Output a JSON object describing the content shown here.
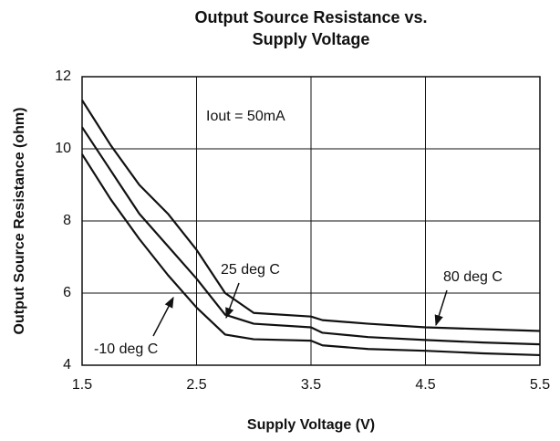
{
  "chart_data": {
    "type": "line",
    "title": [
      "Output Source Resistance vs.",
      "Supply Voltage"
    ],
    "x_label": "Supply Voltage (V)",
    "y_label": "Output Source Resistance (ohm)",
    "annotations": [
      "Iout = 50mA"
    ],
    "x": [
      1.5,
      1.75,
      2.0,
      2.25,
      2.5,
      2.75,
      3.0,
      3.5,
      3.6,
      4.0,
      4.5,
      5.0,
      5.5
    ],
    "series": [
      {
        "name": "80 deg C",
        "color": "#111111",
        "values": [
          11.35,
          10.1,
          9.0,
          8.2,
          7.2,
          6.0,
          5.45,
          5.35,
          5.25,
          5.15,
          5.05,
          5.0,
          4.95
        ]
      },
      {
        "name": "25 deg C",
        "color": "#111111",
        "values": [
          10.6,
          9.4,
          8.2,
          7.3,
          6.4,
          5.4,
          5.15,
          5.05,
          4.9,
          4.78,
          4.7,
          4.63,
          4.58
        ]
      },
      {
        "name": "-10 deg C",
        "color": "#111111",
        "values": [
          9.85,
          8.6,
          7.5,
          6.5,
          5.6,
          4.85,
          4.72,
          4.68,
          4.55,
          4.45,
          4.4,
          4.33,
          4.28
        ]
      }
    ],
    "xlim": [
      1.5,
      5.5
    ],
    "xticks": [
      1.5,
      2.5,
      3.5,
      4.5,
      5.5
    ],
    "ylim": [
      4,
      12
    ],
    "yticks": [
      4,
      6,
      8,
      10,
      12
    ],
    "grid": true
  }
}
